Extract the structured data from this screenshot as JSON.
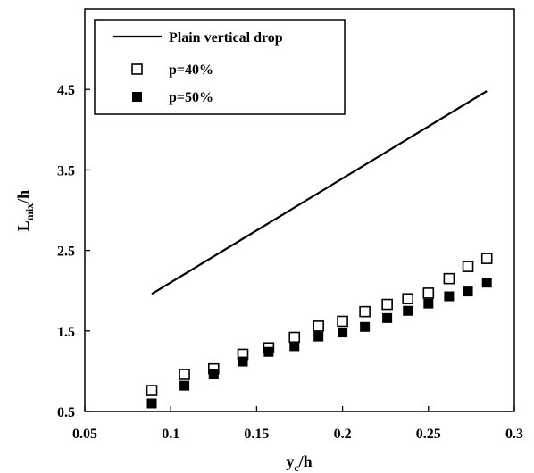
{
  "chart_data": {
    "type": "scatter",
    "title": "",
    "xlabel": {
      "main": "y",
      "sub": "c",
      "rest": "/h"
    },
    "ylabel": {
      "main": "L",
      "sub": "mix",
      "rest": "/h"
    },
    "xlim": [
      0.05,
      0.3
    ],
    "ylim": [
      0.5,
      5.5
    ],
    "xticks": [
      "0.05",
      "0.1",
      "0.15",
      "0.2",
      "0.25",
      "0.3"
    ],
    "yticks": [
      "0.5",
      "1.5",
      "2.5",
      "3.5",
      "4.5"
    ],
    "grid": false,
    "legend_position": "top-left",
    "series": [
      {
        "name": "Plain vertical drop",
        "kind": "line",
        "color": "#000000",
        "x": [
          0.089,
          0.284
        ],
        "y": [
          1.96,
          4.48
        ]
      },
      {
        "name": "p=40%",
        "kind": "marker-open-square",
        "color": "#000000",
        "x": [
          0.089,
          0.108,
          0.125,
          0.142,
          0.157,
          0.172,
          0.186,
          0.2,
          0.213,
          0.226,
          0.238,
          0.25,
          0.262,
          0.273,
          0.284
        ],
        "y": [
          0.76,
          0.96,
          1.03,
          1.21,
          1.29,
          1.42,
          1.56,
          1.62,
          1.74,
          1.83,
          1.9,
          1.97,
          2.15,
          2.3,
          2.4
        ]
      },
      {
        "name": "p=50%",
        "kind": "marker-filled-square",
        "color": "#000000",
        "x": [
          0.089,
          0.108,
          0.125,
          0.142,
          0.157,
          0.172,
          0.186,
          0.2,
          0.213,
          0.226,
          0.238,
          0.25,
          0.262,
          0.273,
          0.284
        ],
        "y": [
          0.6,
          0.82,
          0.96,
          1.12,
          1.24,
          1.31,
          1.43,
          1.48,
          1.55,
          1.66,
          1.75,
          1.84,
          1.93,
          1.99,
          2.1
        ]
      }
    ]
  }
}
